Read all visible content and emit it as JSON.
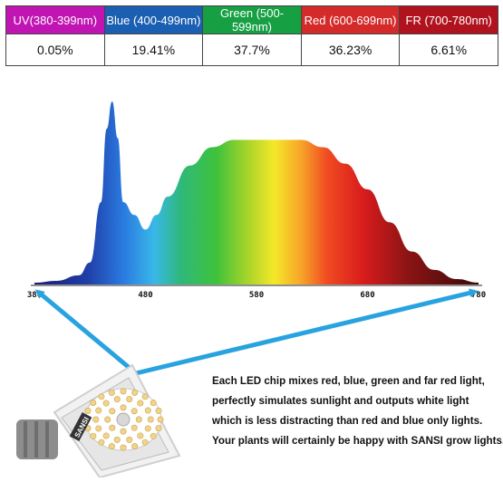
{
  "bands": [
    {
      "label": "UV(380-399nm)",
      "value": "0.05%",
      "color": "#c015b3"
    },
    {
      "label": "Blue (400-499nm)",
      "value": "19.41%",
      "color": "#1a5fb2"
    },
    {
      "label": "Green (500-599nm)",
      "value": "37.7%",
      "color": "#16a043"
    },
    {
      "label": "Red (600-699nm)",
      "value": "36.23%",
      "color": "#d52a2a"
    },
    {
      "label": "FR (700-780nm)",
      "value": "6.61%",
      "color": "#b0131d"
    }
  ],
  "chart_data": {
    "type": "area",
    "x": [
      380,
      400,
      420,
      430,
      440,
      445,
      450,
      455,
      460,
      470,
      480,
      490,
      500,
      520,
      540,
      560,
      580,
      600,
      620,
      640,
      660,
      680,
      700,
      720,
      740,
      760,
      780
    ],
    "values": [
      0.01,
      0.02,
      0.05,
      0.12,
      0.45,
      0.85,
      1.0,
      0.8,
      0.45,
      0.38,
      0.3,
      0.38,
      0.48,
      0.65,
      0.75,
      0.79,
      0.79,
      0.79,
      0.79,
      0.75,
      0.66,
      0.52,
      0.34,
      0.18,
      0.08,
      0.03,
      0.01
    ],
    "xticks": [
      "380",
      "480",
      "580",
      "680",
      "780"
    ],
    "xlim": [
      380,
      780
    ],
    "ylim": [
      0,
      1.0
    ],
    "grid": false,
    "legend": "none"
  },
  "caption": [
    "Each LED chip mixes red, blue, green and far red light,",
    "perfectly simulates sunlight and outputs white light",
    "which is less distracting than red and blue only lights.",
    "Your plants will certainly be happy with SANSI grow lights."
  ],
  "bulb_brand": "SANSI"
}
